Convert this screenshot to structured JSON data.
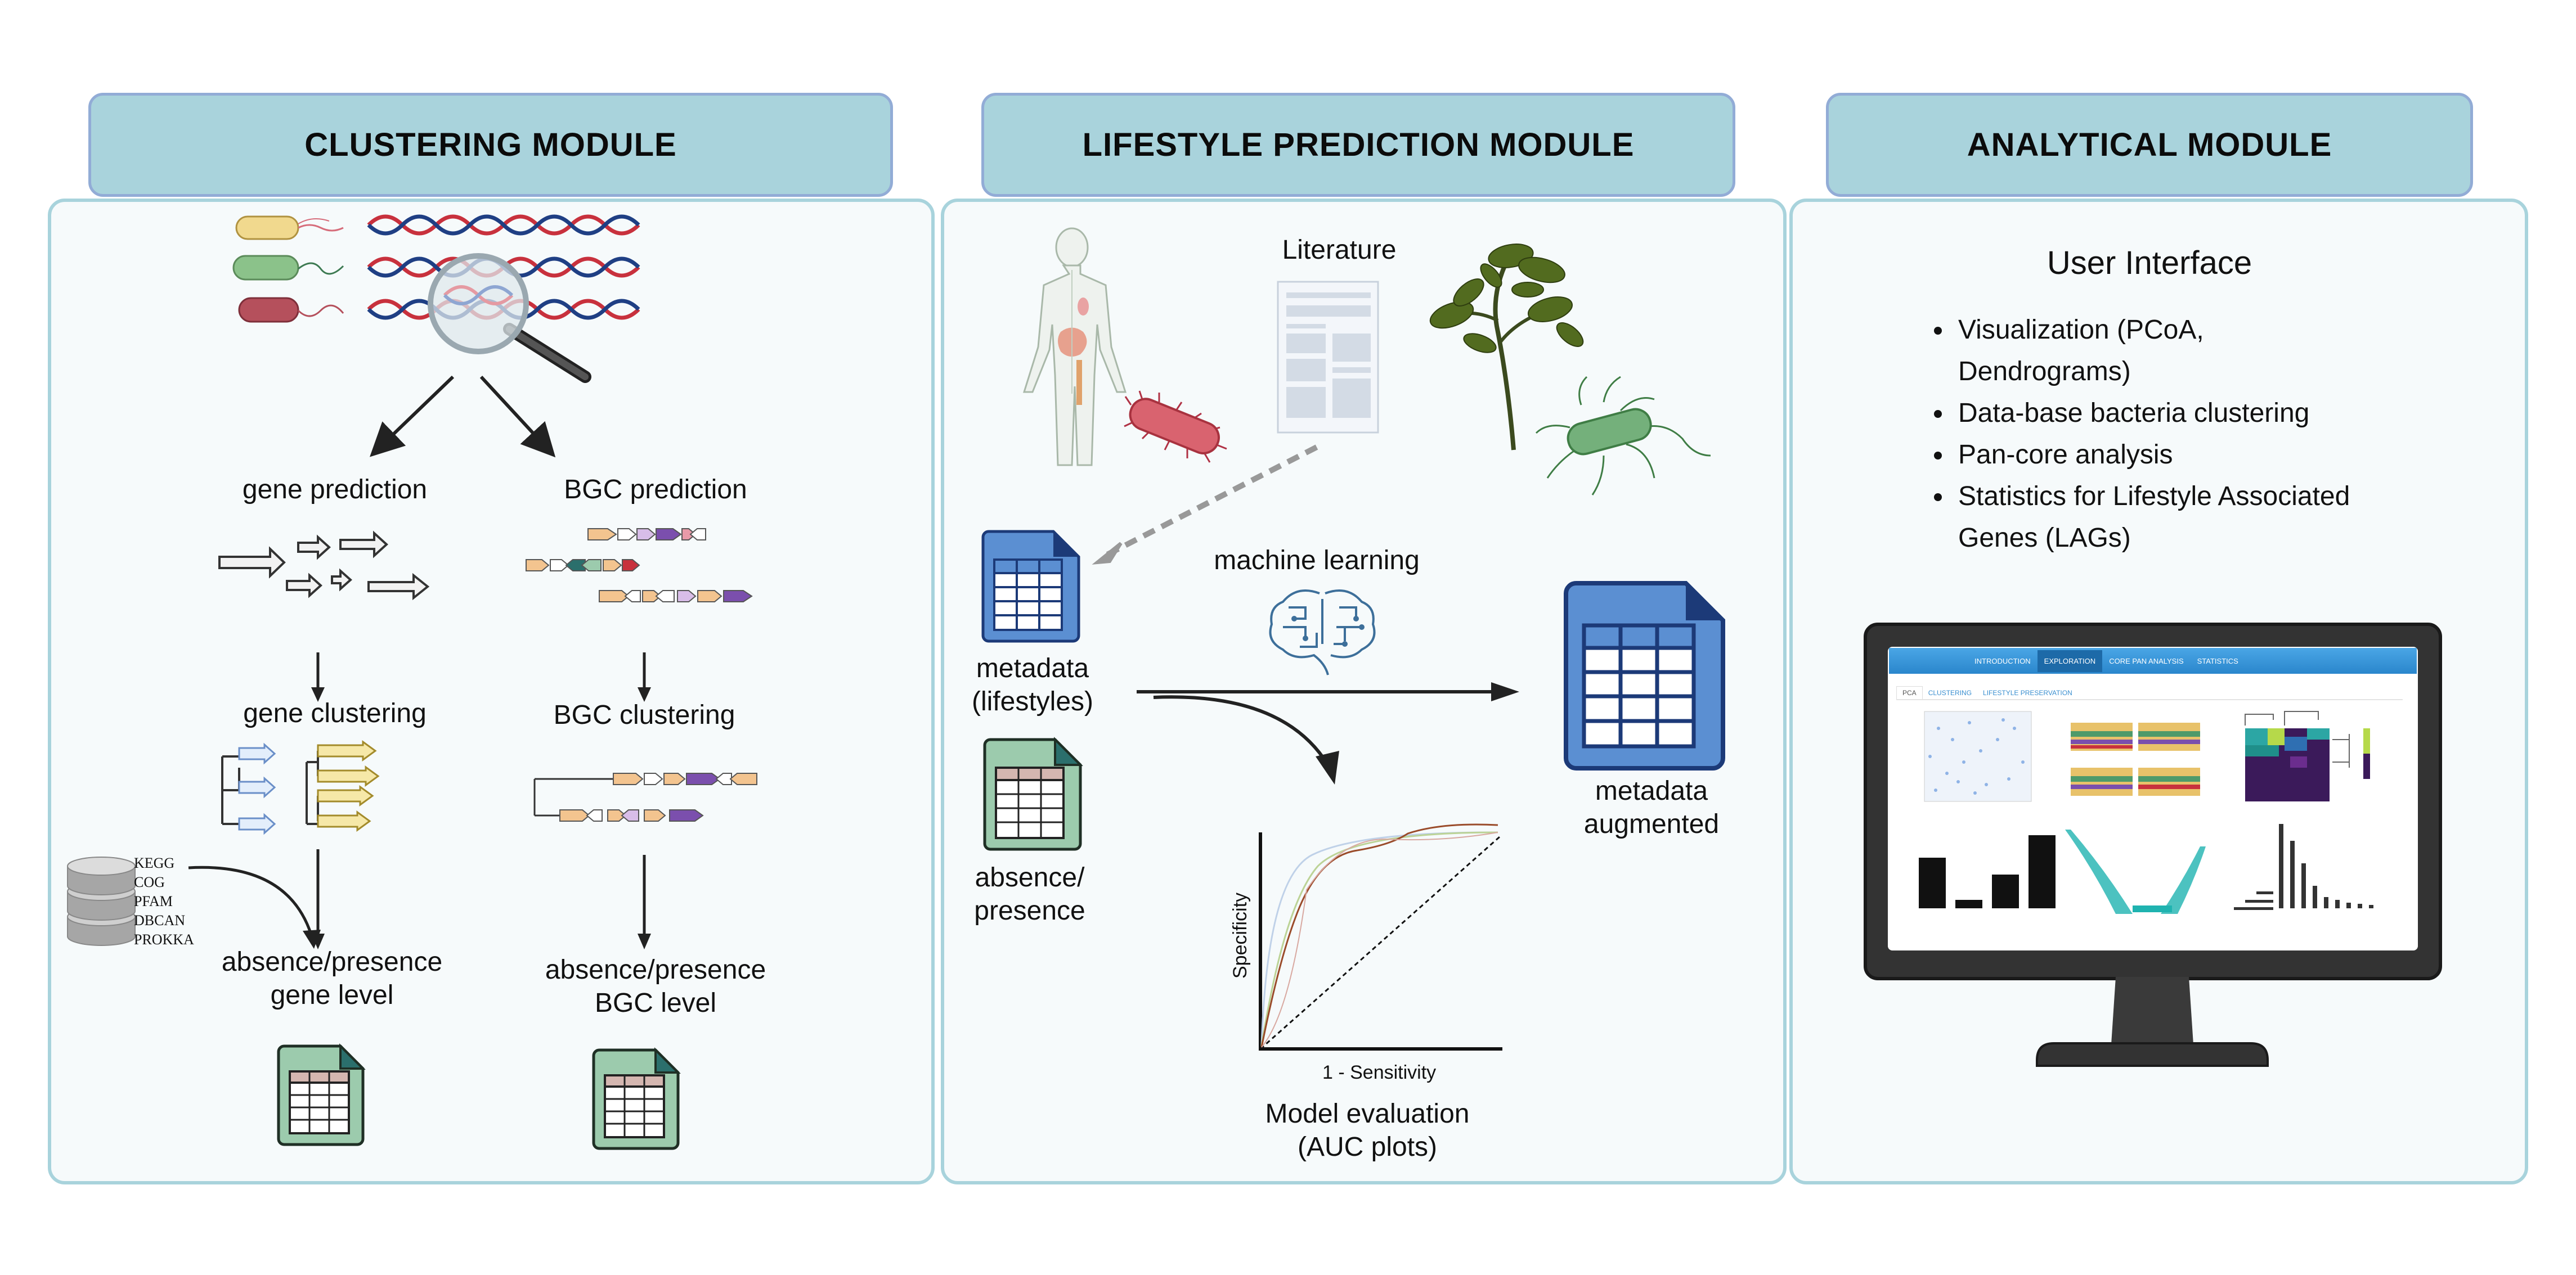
{
  "modules": {
    "clustering": {
      "title": "CLUSTERING MODULE"
    },
    "lifestyle": {
      "title": "LIFESTYLE PREDICTION MODULE"
    },
    "analytical": {
      "title": "ANALYTICAL MODULE"
    }
  },
  "clustering": {
    "gene_prediction": "gene prediction",
    "bgc_prediction": "BGC prediction",
    "gene_clustering": "gene clustering",
    "bgc_clustering": "BGC clustering",
    "gene_level_line1": "absence/presence",
    "gene_level_line2": "gene level",
    "bgc_level_line1": "absence/presence",
    "bgc_level_line2": "BGC level",
    "databases": [
      "KEGG",
      "COG",
      "PFAM",
      "DBCAN",
      "PROKKA"
    ]
  },
  "lifestyle": {
    "literature": "Literature",
    "machine_learning": "machine learning",
    "metadata_line1": "metadata",
    "metadata_line2": "(lifestyles)",
    "absence_line1": "absence/",
    "absence_line2": "presence",
    "augmented_line1": "metadata",
    "augmented_line2": "augmented",
    "auc_ylabel": "Specificity",
    "auc_xlabel": "1 - Sensitivity",
    "model_eval_line1": "Model evaluation",
    "model_eval_line2": "(AUC plots)"
  },
  "analytical": {
    "ui_title": "User Interface",
    "bullets": [
      "Visualization (PCoA,\nDendrograms)",
      "Data-base bacteria clustering",
      "Pan-core analysis",
      "Statistics for Lifestyle Associated\nGenes (LAGs)"
    ],
    "screen_nav": [
      "INTRODUCTION",
      "EXPLORATION",
      "CORE PAN ANALYSIS",
      "STATISTICS"
    ],
    "screen_tabs": [
      "PCA",
      "CLUSTERING",
      "LIFESTYLE PRESERVATION"
    ]
  },
  "colors": {
    "header_fill": "#a9d3dc",
    "header_border": "#92acd6",
    "panel_border": "#a8d3dc",
    "panel_fill": "#f6fafb",
    "table_blue": "#5b8fd2",
    "table_green": "#9ccbad"
  }
}
